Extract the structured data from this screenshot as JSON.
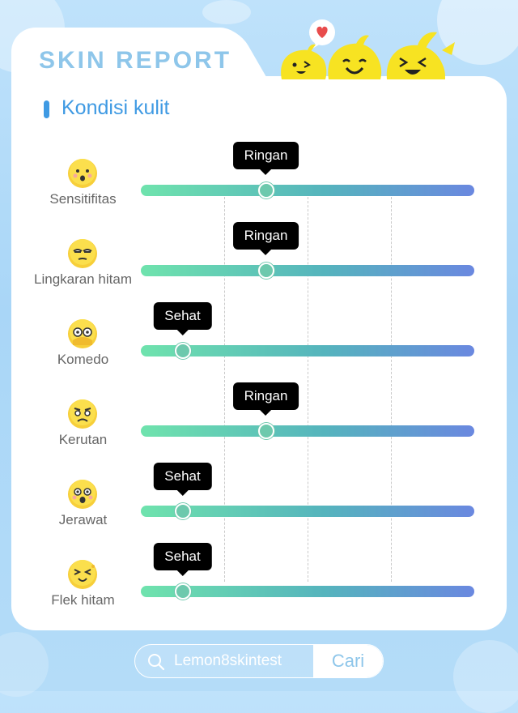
{
  "header": {
    "title": "SKIN REPORT"
  },
  "section": {
    "title": "Kondisi kulit"
  },
  "metrics": [
    {
      "label": "Sensitifitas",
      "status": "Ringan",
      "level": 0.375,
      "icon": "surprised-face-icon"
    },
    {
      "label": "Lingkaran hitam",
      "status": "Ringan",
      "level": 0.375,
      "icon": "tired-face-icon"
    },
    {
      "label": "Komedo",
      "status": "Sehat",
      "level": 0.125,
      "icon": "hands-on-face-icon"
    },
    {
      "label": "Kerutan",
      "status": "Ringan",
      "level": 0.375,
      "icon": "frowning-face-icon"
    },
    {
      "label": "Jerawat",
      "status": "Sehat",
      "level": 0.125,
      "icon": "shocked-face-icon"
    },
    {
      "label": "Flek hitam",
      "status": "Sehat",
      "level": 0.125,
      "icon": "squinting-face-icon"
    }
  ],
  "search": {
    "query": "Lemon8skintest",
    "button_label": "Cari"
  },
  "colors": {
    "accent": "#3f9ae3",
    "title": "#8ec6ea",
    "track_start": "#6fe3ad",
    "track_end": "#6a88e0",
    "mascot": "#f7e322"
  }
}
